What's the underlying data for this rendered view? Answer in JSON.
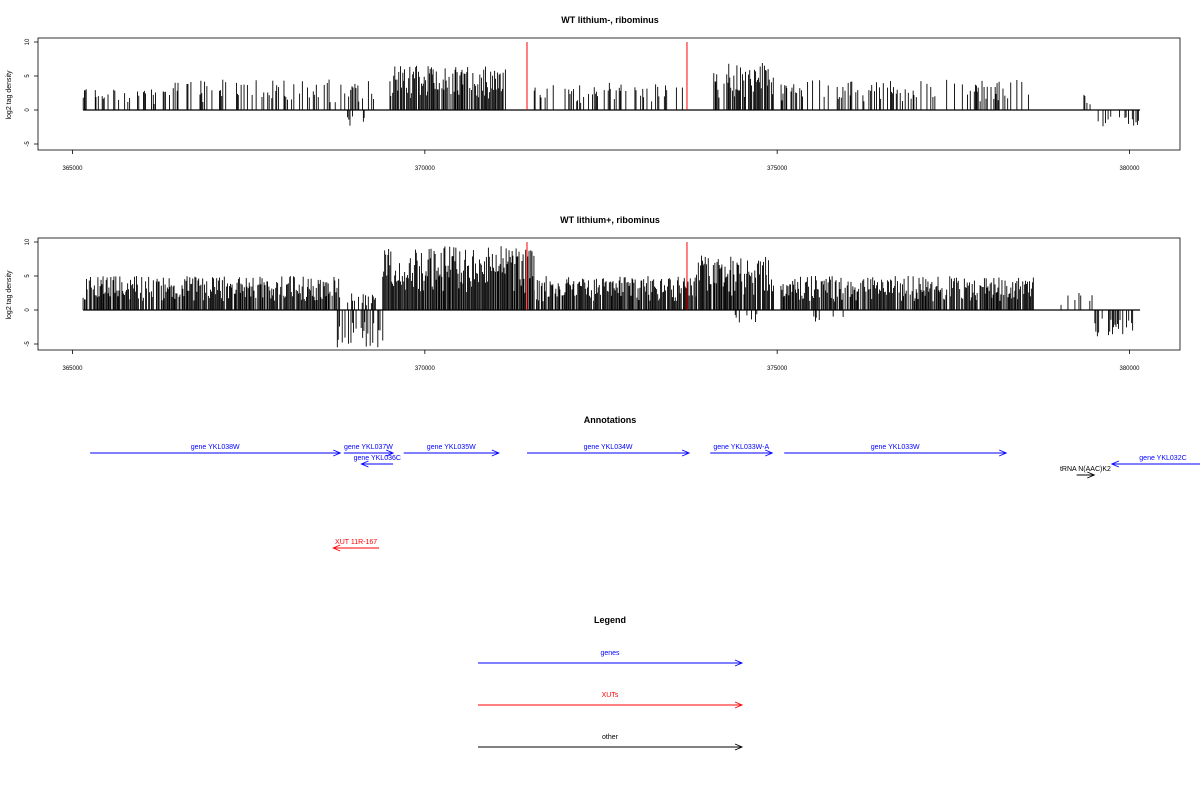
{
  "chart_data": [
    {
      "type": "bar",
      "title": "WT lithium-, ribominus",
      "xlabel": "",
      "ylabel": "log2 tag density",
      "xlim": [
        365000,
        380000
      ],
      "ylim": [
        -5,
        10
      ],
      "x_ticks": [
        "365000",
        "370000",
        "375000",
        "380000"
      ],
      "y_ticks": [
        "-5",
        "0",
        "5",
        "10"
      ],
      "grid": false,
      "baseline_range": [
        365150,
        380150
      ],
      "red_markers": [
        371450,
        373720
      ],
      "regions": [
        {
          "start": 365150,
          "end": 366300,
          "max": 3.5,
          "density": 0.25,
          "seed": 11
        },
        {
          "start": 366300,
          "end": 369300,
          "max": 4.5,
          "density": 0.3,
          "seed": 12
        },
        {
          "start": 369500,
          "end": 371150,
          "max": 6.5,
          "density": 0.9,
          "seed": 13
        },
        {
          "start": 371550,
          "end": 373700,
          "max": 4.0,
          "density": 0.35,
          "seed": 14
        },
        {
          "start": 374100,
          "end": 374950,
          "max": 7.0,
          "density": 0.85,
          "seed": 15
        },
        {
          "start": 375050,
          "end": 378600,
          "max": 4.5,
          "density": 0.35,
          "seed": 16
        },
        {
          "start": 379350,
          "end": 379500,
          "max": 2.5,
          "density": 0.3,
          "seed": 17
        }
      ],
      "negative_regions": [
        {
          "start": 368900,
          "end": 369000,
          "min": -2.5,
          "density": 0.5,
          "seed": 21
        },
        {
          "start": 369120,
          "end": 369180,
          "min": -3.5,
          "density": 0.6,
          "seed": 22
        },
        {
          "start": 379550,
          "end": 380150,
          "min": -3.0,
          "density": 0.4,
          "seed": 23
        }
      ]
    },
    {
      "type": "bar",
      "title": "WT lithium+, ribominus",
      "xlabel": "",
      "ylabel": "log2 tag density",
      "xlim": [
        365000,
        380000
      ],
      "ylim": [
        -5,
        10
      ],
      "x_ticks": [
        "365000",
        "370000",
        "375000",
        "380000"
      ],
      "y_ticks": [
        "-5",
        "0",
        "5",
        "10"
      ],
      "grid": false,
      "baseline_range": [
        365150,
        380150
      ],
      "red_markers": [
        371450,
        373720
      ],
      "regions": [
        {
          "start": 365150,
          "end": 368800,
          "max": 5.0,
          "density": 0.9,
          "seed": 31
        },
        {
          "start": 368900,
          "end": 369300,
          "max": 2.5,
          "density": 0.5,
          "seed": 32
        },
        {
          "start": 369400,
          "end": 371550,
          "max": 9.5,
          "density": 1.0,
          "seed": 33
        },
        {
          "start": 371550,
          "end": 373850,
          "max": 5.0,
          "density": 0.9,
          "seed": 34
        },
        {
          "start": 373850,
          "end": 374950,
          "max": 8.0,
          "density": 0.95,
          "seed": 35
        },
        {
          "start": 375050,
          "end": 378650,
          "max": 5.0,
          "density": 0.9,
          "seed": 36
        },
        {
          "start": 379000,
          "end": 379500,
          "max": 2.5,
          "density": 0.2,
          "seed": 37
        }
      ],
      "negative_regions": [
        {
          "start": 368750,
          "end": 369400,
          "min": -5.5,
          "density": 0.6,
          "seed": 41
        },
        {
          "start": 374400,
          "end": 374900,
          "min": -2.0,
          "density": 0.3,
          "seed": 42
        },
        {
          "start": 375500,
          "end": 376000,
          "min": -2.0,
          "density": 0.2,
          "seed": 43
        },
        {
          "start": 379500,
          "end": 380100,
          "min": -4.0,
          "density": 0.5,
          "seed": 44
        }
      ]
    }
  ],
  "annotations": {
    "title": "Annotations",
    "colors": {
      "genes": "#0000ff",
      "XUTs": "#ff0000",
      "other": "#000000"
    },
    "features": [
      {
        "label": "gene YKL038W",
        "start": 365250,
        "end": 368800,
        "strand": "+",
        "row": 0,
        "kind": "genes"
      },
      {
        "label": "gene YKL037W",
        "start": 368850,
        "end": 369550,
        "strand": "+",
        "row": 0,
        "kind": "genes"
      },
      {
        "label": "gene YKL036C",
        "start": 369100,
        "end": 369550,
        "strand": "-",
        "row": 1,
        "kind": "genes"
      },
      {
        "label": "gene YKL035W",
        "start": 369700,
        "end": 371050,
        "strand": "+",
        "row": 0,
        "kind": "genes"
      },
      {
        "label": "gene YKL034W",
        "start": 371450,
        "end": 373750,
        "strand": "+",
        "row": 0,
        "kind": "genes"
      },
      {
        "label": "gene YKL033W-A",
        "start": 374050,
        "end": 374930,
        "strand": "+",
        "row": 0,
        "kind": "genes"
      },
      {
        "label": "gene YKL033W",
        "start": 375100,
        "end": 378250,
        "strand": "+",
        "row": 0,
        "kind": "genes"
      },
      {
        "label": "tRNA N(AAC)K2",
        "start": 379250,
        "end": 379500,
        "strand": "+",
        "row": 2,
        "kind": "other"
      },
      {
        "label": "gene YKL032C",
        "start": 379750,
        "end": 381200,
        "strand": "-",
        "row": 1,
        "kind": "genes"
      },
      {
        "label": "XUT 11R-167",
        "start": 368700,
        "end": 369350,
        "strand": "-",
        "row": 3,
        "kind": "XUTs"
      }
    ]
  },
  "legend": {
    "title": "Legend",
    "items": [
      {
        "label": "genes",
        "color": "#0000ff"
      },
      {
        "label": "XUTs",
        "color": "#ff0000"
      },
      {
        "label": "other",
        "color": "#000000"
      }
    ]
  }
}
